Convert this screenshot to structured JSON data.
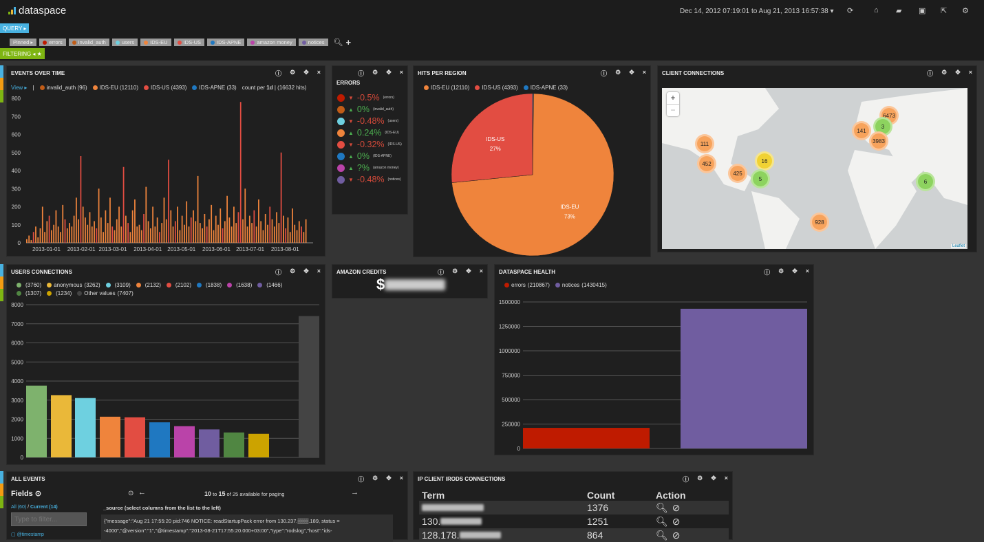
{
  "app": {
    "title": "dataspace",
    "date_range": "Dec 14, 2012 07:19:01 to Aug 21, 2013 16:57:38 ▾",
    "icons": [
      "refresh-icon",
      "home-icon",
      "folder-open-icon",
      "save-icon",
      "share-icon",
      "gear-icon"
    ]
  },
  "query": {
    "label": "QUERY ▸",
    "filtering_label": "FILTERING ◂ ★",
    "pinned_label": "Pinned ▸",
    "pills": [
      {
        "label": "errors",
        "color": "#bf1b00"
      },
      {
        "label": "invalid_auth",
        "color": "#c15c17"
      },
      {
        "label": "users",
        "color": "#6ed0e0"
      },
      {
        "label": "IDS-EU",
        "color": "#ef843c"
      },
      {
        "label": "IDS-US",
        "color": "#e24d42"
      },
      {
        "label": "IDS-APNE",
        "color": "#1f78c1"
      },
      {
        "label": "amazon money",
        "color": "#ba43a9"
      },
      {
        "label": "notices",
        "color": "#705da0"
      }
    ]
  },
  "panels": {
    "events": {
      "title": "EVENTS OVER TIME",
      "view": "View ▸",
      "legend": [
        {
          "label": "invalid_auth (96)",
          "color": "#c15c17"
        },
        {
          "label": "IDS-EU (12110)",
          "color": "#ef843c"
        },
        {
          "label": "IDS-US (4393)",
          "color": "#e24d42"
        },
        {
          "label": "IDS-APNE (33)",
          "color": "#1f78c1"
        }
      ],
      "count_pre": "count per ",
      "interval": "1d",
      "hits": " | (16632 hits)"
    },
    "errors": {
      "title": "ERRORS",
      "items": [
        {
          "color": "#bf1b00",
          "dir": "down",
          "pct": "-0.5%",
          "label": "(errors)"
        },
        {
          "color": "#c15c17",
          "dir": "up",
          "pct": "0%",
          "label": "(invalid_auth)"
        },
        {
          "color": "#6ed0e0",
          "dir": "down",
          "pct": "-0.48%",
          "label": "(users)"
        },
        {
          "color": "#ef843c",
          "dir": "up",
          "pct": "0.24%",
          "label": "(IDS-EU)"
        },
        {
          "color": "#e24d42",
          "dir": "down",
          "pct": "-0.32%",
          "label": "(IDS-US)"
        },
        {
          "color": "#1f78c1",
          "dir": "up",
          "pct": "0%",
          "label": "(IDS-APNE)"
        },
        {
          "color": "#ba43a9",
          "dir": "up",
          "pct": "?%",
          "label": "(amazon money)"
        },
        {
          "color": "#705da0",
          "dir": "down",
          "pct": "-0.48%",
          "label": "(notices)"
        }
      ]
    },
    "hits": {
      "title": "HITS PER REGION"
    },
    "clients": {
      "title": "CLIENT CONNECTIONS",
      "zoom_in": "+",
      "zoom_out": "−",
      "attribution": "Leaflet",
      "clusters": [
        {
          "n": "6473",
          "c": "orange"
        },
        {
          "n": "141",
          "c": "orange"
        },
        {
          "n": "3",
          "c": "green"
        },
        {
          "n": "3983",
          "c": "orange"
        },
        {
          "n": "111",
          "c": "orange"
        },
        {
          "n": "452",
          "c": "orange"
        },
        {
          "n": "16",
          "c": "yellow"
        },
        {
          "n": "425",
          "c": "orange"
        },
        {
          "n": "5",
          "c": "green"
        },
        {
          "n": "6",
          "c": "green"
        },
        {
          "n": "928",
          "c": "orange"
        }
      ]
    },
    "users": {
      "title": "USERS CONNECTIONS"
    },
    "amazon": {
      "title": "AMAZON CREDITS",
      "value": "$"
    },
    "health": {
      "title": "DATASPACE HEALTH"
    },
    "all_events": {
      "title": "ALL EVENTS",
      "fields": "Fields ⊙",
      "all": "All (60)",
      "sep": " / ",
      "current": "Current (14)",
      "filter_placeholder": "Type to filter...",
      "field0": "@timestamp",
      "paging_from": "10",
      "to": " to ",
      "paging_to": "15",
      "paging_rest": " of 25 available for paging",
      "source_header": "_source (select columns from the list to the left)",
      "row": "{\"message\":\"Aug 21 17:55:20 pid:746 NOTICE: readStartupPack error from 130.237.▒▒▒.189, status = -4000\",\"@version\":\"1\",\"@timestamp\":\"2013-08-21T17:55:20.000+03:00\",\"type\":\"rodslog\",\"host\":\"ids-"
    },
    "ip": {
      "title": "IP CLIENT IRODS CONNECTIONS",
      "headers": [
        "Term",
        "Count",
        "Action"
      ],
      "rows": [
        {
          "term": "",
          "count": "1376"
        },
        {
          "term": "130.",
          "count": "1251"
        },
        {
          "term": "128.178.",
          "count": "864"
        }
      ]
    }
  },
  "chart_data": [
    {
      "type": "bar",
      "title": "EVENTS OVER TIME",
      "ylim": [
        0,
        800
      ],
      "yticks": [
        0,
        100,
        200,
        300,
        400,
        500,
        600,
        700,
        800
      ],
      "xticks": [
        "2013-01-01",
        "2013-02-01",
        "2013-03-01",
        "2013-04-01",
        "2013-05-01",
        "2013-06-01",
        "2013-07-01",
        "2013-08-01"
      ],
      "x_start": "2012-12-14",
      "x_end": "2013-08-21",
      "bucket": "2d",
      "values": [
        20,
        40,
        15,
        60,
        90,
        30,
        80,
        200,
        60,
        120,
        150,
        70,
        100,
        180,
        90,
        60,
        210,
        130,
        80,
        110,
        90,
        150,
        250,
        130,
        480,
        200,
        140,
        100,
        170,
        90,
        120,
        80,
        300,
        140,
        60,
        180,
        110,
        250,
        90,
        70,
        130,
        200,
        90,
        420,
        150,
        110,
        60,
        180,
        240,
        90,
        100,
        70,
        160,
        310,
        120,
        80,
        200,
        90,
        140,
        60,
        110,
        250,
        130,
        460,
        180,
        90,
        120,
        200,
        70,
        150,
        100,
        230,
        90,
        140,
        180,
        120,
        370,
        110,
        80,
        160,
        90,
        130,
        210,
        70,
        150,
        100,
        190,
        80,
        120,
        260,
        140,
        90,
        200,
        110,
        170,
        780,
        130,
        300,
        90,
        150,
        110,
        180,
        90,
        240,
        120,
        70,
        160,
        100,
        200,
        130,
        90,
        170,
        110,
        500,
        150,
        80,
        140,
        60,
        190,
        100,
        70,
        120,
        90,
        60,
        130
      ]
    },
    {
      "type": "pie",
      "title": "HITS PER REGION",
      "slices": [
        {
          "name": "IDS-EU (12110)",
          "label": "IDS-EU",
          "pct": "73%",
          "value": 12110,
          "color": "#ef843c"
        },
        {
          "name": "IDS-US (4393)",
          "label": "IDS-US",
          "pct": "27%",
          "value": 4393,
          "color": "#e24d42"
        },
        {
          "name": "IDS-APNE (33)",
          "label": "IDS-APNE",
          "pct": "",
          "value": 33,
          "color": "#1f78c1"
        }
      ]
    },
    {
      "type": "bar",
      "title": "USERS CONNECTIONS",
      "ylim": [
        0,
        8000
      ],
      "yticks": [
        0,
        1000,
        2000,
        3000,
        4000,
        5000,
        6000,
        7000,
        8000
      ],
      "bars": [
        {
          "name": "",
          "value": 3760,
          "color": "#7eb26d"
        },
        {
          "name": "anonymous",
          "value": 3262,
          "color": "#eab839"
        },
        {
          "name": "",
          "value": 3109,
          "color": "#6ed0e0"
        },
        {
          "name": "",
          "value": 2132,
          "color": "#ef843c"
        },
        {
          "name": "",
          "value": 2102,
          "color": "#e24d42"
        },
        {
          "name": "",
          "value": 1838,
          "color": "#1f78c1"
        },
        {
          "name": "",
          "value": 1638,
          "color": "#ba43a9"
        },
        {
          "name": "",
          "value": 1466,
          "color": "#705da0"
        },
        {
          "name": "",
          "value": 1307,
          "color": "#508642"
        },
        {
          "name": "",
          "value": 1234,
          "color": "#cca300"
        },
        {
          "name": "Other values",
          "value": 7407,
          "color": "#444444"
        }
      ]
    },
    {
      "type": "bar",
      "title": "DATASPACE HEALTH",
      "ylim": [
        0,
        1500000
      ],
      "yticks": [
        0,
        250000,
        500000,
        750000,
        1000000,
        1250000,
        1500000
      ],
      "bars": [
        {
          "name": "errors",
          "value": 210867,
          "color": "#bf1b00"
        },
        {
          "name": "notices",
          "value": 1430415,
          "color": "#705da0"
        }
      ]
    }
  ]
}
